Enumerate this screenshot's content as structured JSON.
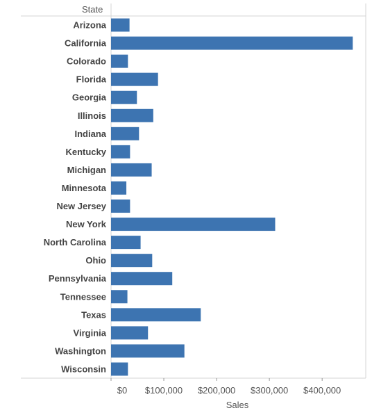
{
  "chart_data": {
    "type": "bar",
    "orientation": "horizontal",
    "row_header": "State",
    "xlabel": "Sales",
    "ylabel": "",
    "categories": [
      "Arizona",
      "California",
      "Colorado",
      "Florida",
      "Georgia",
      "Illinois",
      "Indiana",
      "Kentucky",
      "Michigan",
      "Minnesota",
      "New Jersey",
      "New York",
      "North Carolina",
      "Ohio",
      "Pennsylvania",
      "Tennessee",
      "Texas",
      "Virginia",
      "Washington",
      "Wisconsin"
    ],
    "values": [
      35000,
      458000,
      32000,
      89000,
      49000,
      80000,
      53000,
      36000,
      77000,
      29000,
      36000,
      311000,
      56000,
      78000,
      116000,
      31000,
      170000,
      70000,
      139000,
      32000
    ],
    "xlim": [
      0,
      480000
    ],
    "ticks": [
      0,
      100000,
      200000,
      300000,
      400000
    ],
    "tick_labels": [
      "$0",
      "$100,000",
      "$200,000",
      "$300,000",
      "$400,000"
    ],
    "grid": false,
    "legend": "none",
    "colors": {
      "bar": "#3d74b1",
      "border": "#d4d4d4",
      "label": "#444444",
      "tick": "#555555"
    }
  }
}
